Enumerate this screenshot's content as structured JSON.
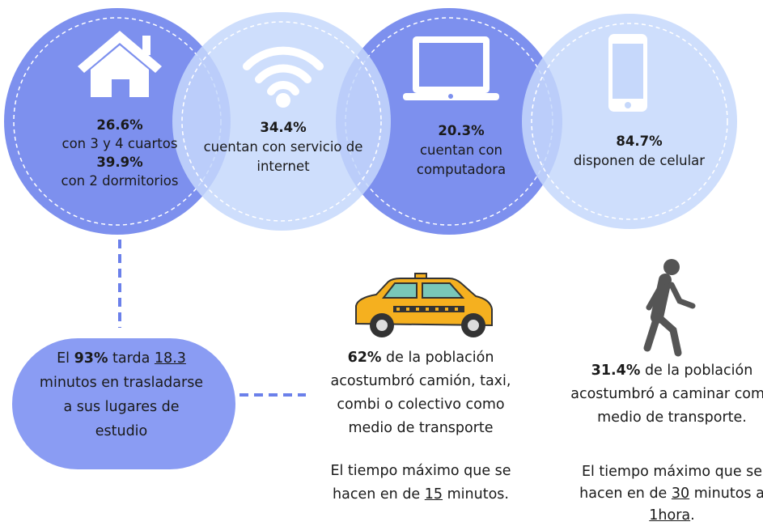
{
  "circles": [
    {
      "stats": [
        {
          "value": "26.6%",
          "text": "con 3 y 4 cuartos"
        },
        {
          "value": "39.9%",
          "text": "con 2 dormitorios"
        }
      ]
    },
    {
      "stats": [
        {
          "value": "34.4%",
          "text": "cuentan con servicio de internet"
        }
      ]
    },
    {
      "stats": [
        {
          "value": "20.3%",
          "text": "cuentan con computadora"
        }
      ]
    },
    {
      "stats": [
        {
          "value": "84.7%",
          "text": "disponen de celular"
        }
      ]
    }
  ],
  "study": {
    "parts": [
      "El ",
      "93%",
      " tarda ",
      "18.3",
      " minutos en trasladarse a sus lugares de estudio"
    ]
  },
  "taxi": {
    "parts": [
      "62%",
      " de la población acostumbró camión, taxi, combi o colectivo como medio de transporte"
    ],
    "time": [
      "El tiempo máximo que se hacen en de ",
      "15",
      " minutos."
    ]
  },
  "walk": {
    "parts": [
      "31.4%",
      " de la población acostumbró a caminar como medio de transporte."
    ],
    "time": [
      "El tiempo máximo que se hacen en de ",
      "30",
      " minutos a ",
      "1hora",
      "."
    ]
  }
}
